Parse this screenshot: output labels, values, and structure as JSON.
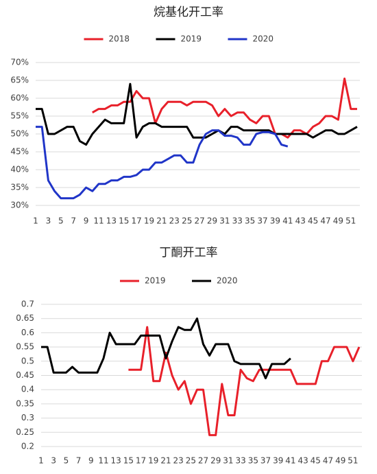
{
  "chart_data": [
    {
      "type": "line",
      "title": "烷基化开工率",
      "x": [
        1,
        2,
        3,
        4,
        5,
        6,
        7,
        8,
        9,
        10,
        11,
        12,
        13,
        14,
        15,
        16,
        17,
        18,
        19,
        20,
        21,
        22,
        23,
        24,
        25,
        26,
        27,
        28,
        29,
        30,
        31,
        32,
        33,
        34,
        35,
        36,
        37,
        38,
        39,
        40,
        41,
        42,
        43,
        44,
        45,
        46,
        47,
        48,
        49,
        50,
        51,
        52
      ],
      "xlim": [
        1,
        52
      ],
      "xticks": [
        1,
        3,
        5,
        7,
        9,
        11,
        13,
        15,
        17,
        19,
        21,
        23,
        25,
        27,
        29,
        31,
        33,
        35,
        37,
        39,
        41,
        43,
        45,
        47,
        49,
        51
      ],
      "ylim": [
        30,
        70
      ],
      "yticks": [
        {
          "value": 30,
          "label": "30%"
        },
        {
          "value": 35,
          "label": "35%"
        },
        {
          "value": 40,
          "label": "40%"
        },
        {
          "value": 45,
          "label": "45%"
        },
        {
          "value": 50,
          "label": "50%"
        },
        {
          "value": 55,
          "label": "55%"
        },
        {
          "value": 60,
          "label": "60%"
        },
        {
          "value": 65,
          "label": "65%"
        },
        {
          "value": 70,
          "label": "70%"
        }
      ],
      "grid": true,
      "legend": "top",
      "series": [
        {
          "name": "2018",
          "color": "#e8202a",
          "values": [
            null,
            null,
            null,
            null,
            null,
            null,
            null,
            null,
            null,
            56,
            57,
            57,
            58,
            58,
            59,
            59,
            62,
            60,
            60,
            53,
            57,
            59,
            59,
            59,
            58,
            59,
            59,
            59,
            58,
            55,
            57,
            55,
            56,
            56,
            54,
            53,
            55,
            55,
            50,
            50,
            49,
            51,
            51,
            50,
            52,
            53,
            55,
            55,
            54,
            65.5,
            57,
            57
          ]
        },
        {
          "name": "2019",
          "color": "#000000",
          "values": [
            57,
            57,
            50,
            50,
            51,
            52,
            52,
            48,
            47,
            50,
            52,
            54,
            53,
            53,
            53,
            64,
            49,
            52,
            53,
            53,
            52,
            52,
            52,
            52,
            52,
            49,
            49,
            49,
            50,
            51,
            50,
            52,
            52,
            51,
            51,
            51,
            51,
            51,
            50,
            50,
            50,
            50,
            50,
            50,
            49,
            50,
            51,
            51,
            50,
            50,
            51,
            52
          ]
        },
        {
          "name": "2020",
          "color": "#2035c8",
          "values": [
            52,
            52,
            37,
            34,
            32,
            32,
            32,
            33,
            35,
            34,
            36,
            36,
            37,
            37,
            38,
            38,
            38.5,
            40,
            40,
            42,
            42,
            43,
            44,
            44,
            42,
            42,
            47,
            50,
            51,
            51,
            49.5,
            49.5,
            49,
            47,
            47,
            50,
            50.5,
            50.5,
            50,
            47,
            46.5,
            null,
            null,
            null,
            null,
            null,
            null,
            null,
            null,
            null,
            null,
            null
          ]
        }
      ]
    },
    {
      "type": "line",
      "title": "丁酮开工率",
      "x": [
        1,
        2,
        3,
        4,
        5,
        6,
        7,
        8,
        9,
        10,
        11,
        12,
        13,
        14,
        15,
        16,
        17,
        18,
        19,
        20,
        21,
        22,
        23,
        24,
        25,
        26,
        27,
        28,
        29,
        30,
        31,
        32,
        33,
        34,
        35,
        36,
        37,
        38,
        39,
        40,
        41,
        42,
        43,
        44,
        45,
        46,
        47,
        48,
        49,
        50,
        51,
        52
      ],
      "xlim": [
        1,
        52
      ],
      "xticks": [
        1,
        3,
        5,
        7,
        9,
        11,
        13,
        15,
        17,
        19,
        21,
        23,
        25,
        27,
        29,
        31,
        33,
        35,
        37,
        39,
        41,
        43,
        45,
        47,
        49,
        51
      ],
      "ylim": [
        0.2,
        0.7
      ],
      "yticks": [
        0.2,
        0.25,
        0.3,
        0.35,
        0.4,
        0.45,
        0.5,
        0.55,
        0.6,
        0.65,
        0.7
      ],
      "grid": true,
      "legend": "top",
      "series": [
        {
          "name": "2019",
          "color": "#e8202a",
          "values": [
            null,
            null,
            null,
            null,
            null,
            null,
            null,
            null,
            null,
            null,
            null,
            null,
            null,
            null,
            0.47,
            0.47,
            0.47,
            0.62,
            0.43,
            0.43,
            0.53,
            0.45,
            0.4,
            0.43,
            0.35,
            0.4,
            0.4,
            0.24,
            0.24,
            0.42,
            0.31,
            0.31,
            0.47,
            0.44,
            0.43,
            0.47,
            0.47,
            0.47,
            0.47,
            0.47,
            0.47,
            0.42,
            0.42,
            0.42,
            0.42,
            0.5,
            0.5,
            0.55,
            0.55,
            0.55,
            0.5,
            0.55
          ]
        },
        {
          "name": "2020",
          "color": "#000000",
          "values": [
            0.55,
            0.55,
            0.46,
            0.46,
            0.46,
            0.48,
            0.46,
            0.46,
            0.46,
            0.46,
            0.51,
            0.6,
            0.56,
            0.56,
            0.56,
            0.56,
            0.59,
            0.59,
            0.59,
            0.59,
            0.51,
            0.57,
            0.62,
            0.61,
            0.61,
            0.65,
            0.56,
            0.52,
            0.56,
            0.56,
            0.56,
            0.5,
            0.49,
            0.49,
            0.49,
            0.49,
            0.44,
            0.49,
            0.49,
            0.49,
            0.51,
            null,
            null,
            null,
            null,
            null,
            null,
            null,
            null,
            null,
            null,
            null
          ]
        }
      ]
    }
  ]
}
